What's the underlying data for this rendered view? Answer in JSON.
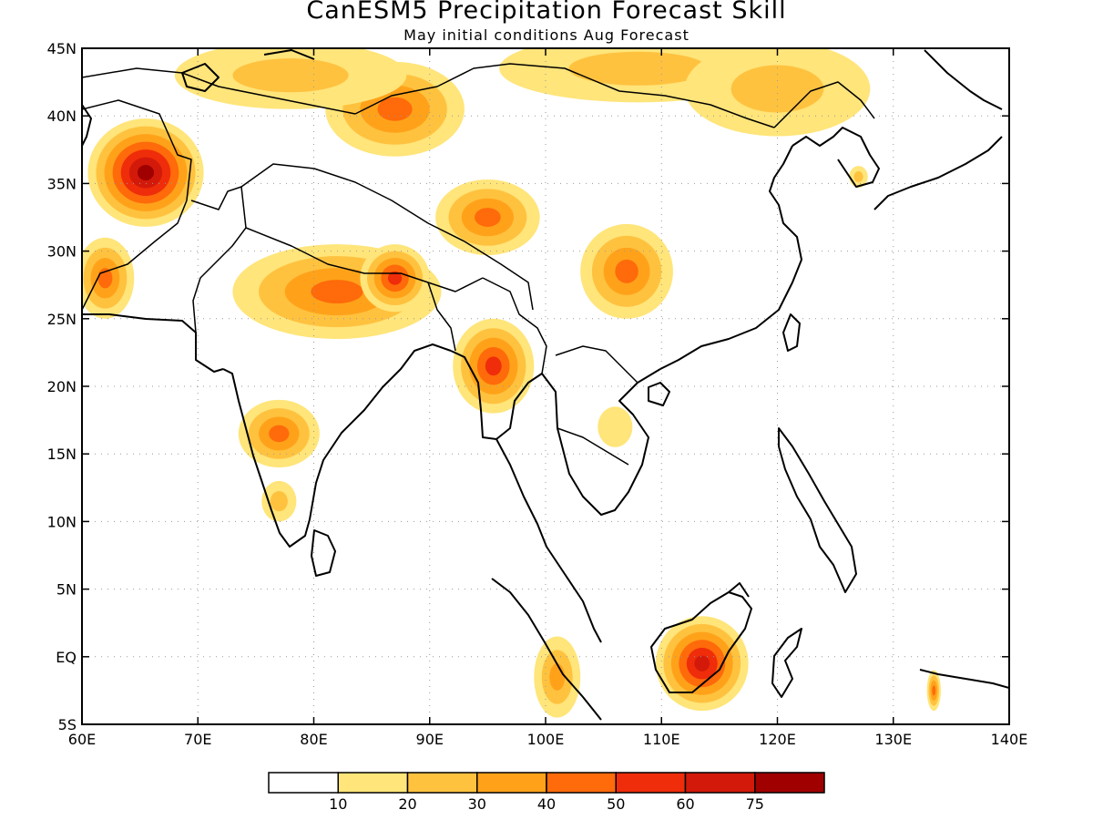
{
  "title": "CanESM5 Precipitation Forecast Skill",
  "subtitle": "May initial conditions  Aug Forecast",
  "map": {
    "lon_labels": [
      "60E",
      "70E",
      "80E",
      "90E",
      "100E",
      "110E",
      "120E",
      "130E",
      "140E"
    ],
    "lat_labels": [
      "45N",
      "40N",
      "35N",
      "30N",
      "25N",
      "20N",
      "15N",
      "10N",
      "5N",
      "EQ",
      "5S"
    ],
    "lon_values": [
      60,
      70,
      80,
      90,
      100,
      110,
      120,
      130,
      140
    ],
    "lat_values": [
      45,
      40,
      35,
      30,
      25,
      20,
      15,
      10,
      5,
      0,
      -5
    ],
    "lon_range": [
      60,
      140
    ],
    "lat_range": [
      -5,
      45
    ],
    "grid": true,
    "gridline_style": "dotted"
  },
  "colorbar": {
    "labels": [
      "10",
      "20",
      "30",
      "40",
      "50",
      "60",
      "75"
    ],
    "colors": [
      "#ffffff",
      "#ffe57a",
      "#ffc23f",
      "#ffa21a",
      "#ff6a0a",
      "#ef2d0a",
      "#d31a0a",
      "#a00000"
    ]
  },
  "skill_regions": [
    {
      "name": "afghanistan",
      "lon": 65.5,
      "lat": 35.8,
      "levels": [
        1,
        2,
        3,
        4,
        5,
        6,
        7
      ],
      "rx": 5,
      "ry": 4
    },
    {
      "name": "iran-border",
      "lon": 62,
      "lat": 28,
      "levels": [
        1,
        2,
        3,
        4
      ],
      "rx": 2.5,
      "ry": 3
    },
    {
      "name": "tibet-north",
      "lon": 87,
      "lat": 40.5,
      "levels": [
        1,
        2,
        3,
        4
      ],
      "rx": 6,
      "ry": 3.5
    },
    {
      "name": "kazakh-north",
      "lon": 78,
      "lat": 43,
      "levels": [
        1,
        2
      ],
      "rx": 10,
      "ry": 2.5
    },
    {
      "name": "tibet-central",
      "lon": 95,
      "lat": 32.5,
      "levels": [
        1,
        2,
        3,
        4
      ],
      "rx": 4.5,
      "ry": 2.8
    },
    {
      "name": "sichuan",
      "lon": 107,
      "lat": 28.5,
      "levels": [
        1,
        2,
        3,
        4
      ],
      "rx": 4,
      "ry": 3.5
    },
    {
      "name": "mongolia",
      "lon": 108,
      "lat": 43.5,
      "levels": [
        1,
        2
      ],
      "rx": 12,
      "ry": 2.5
    },
    {
      "name": "manchuria",
      "lon": 120,
      "lat": 42,
      "levels": [
        1,
        2
      ],
      "rx": 8,
      "ry": 3.5
    },
    {
      "name": "ganges",
      "lon": 82,
      "lat": 27,
      "levels": [
        1,
        2,
        3,
        4
      ],
      "rx": 9,
      "ry": 3.5
    },
    {
      "name": "nepal",
      "lon": 87,
      "lat": 28,
      "levels": [
        1,
        2,
        3,
        4,
        5
      ],
      "rx": 3,
      "ry": 2.5
    },
    {
      "name": "myanmar",
      "lon": 95.5,
      "lat": 21.5,
      "levels": [
        1,
        2,
        3,
        4,
        5
      ],
      "rx": 3.5,
      "ry": 3.5
    },
    {
      "name": "deccan",
      "lon": 77,
      "lat": 16.5,
      "levels": [
        1,
        2,
        3,
        4
      ],
      "rx": 3.5,
      "ry": 2.5
    },
    {
      "name": "kerala",
      "lon": 77,
      "lat": 11.5,
      "levels": [
        1,
        2
      ],
      "rx": 1.5,
      "ry": 1.5
    },
    {
      "name": "laos",
      "lon": 106,
      "lat": 17,
      "levels": [
        1
      ],
      "rx": 1.5,
      "ry": 1.5
    },
    {
      "name": "sumatra",
      "lon": 101,
      "lat": -1.5,
      "levels": [
        1,
        2,
        3
      ],
      "rx": 2,
      "ry": 3
    },
    {
      "name": "borneo",
      "lon": 113.5,
      "lat": -0.5,
      "levels": [
        1,
        2,
        3,
        4,
        5,
        6
      ],
      "rx": 4,
      "ry": 3.5
    },
    {
      "name": "new-guinea",
      "lon": 133.5,
      "lat": -2.5,
      "levels": [
        1,
        2,
        3,
        4
      ],
      "rx": 0.6,
      "ry": 1.5
    },
    {
      "name": "korea",
      "lon": 127,
      "lat": 35.5,
      "levels": [
        1,
        2
      ],
      "rx": 0.8,
      "ry": 0.8
    }
  ]
}
